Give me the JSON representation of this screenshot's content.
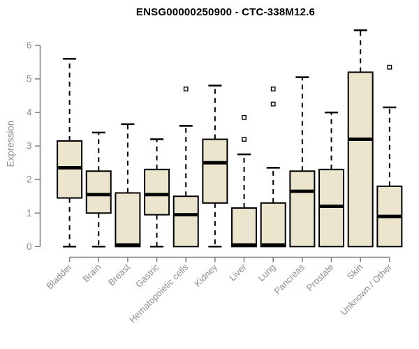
{
  "colors": {
    "background": "#ffffff",
    "box_fill": "#ECE5CD",
    "box_stroke": "#000000",
    "median": "#000000",
    "whisker": "#000000",
    "axis_line": "#7d7d7d",
    "axis_text": "#8e8e8e",
    "title_text": "#000000"
  },
  "chart_data": {
    "type": "boxplot",
    "title": "ENSG00000250900 - CTC-338M12.6",
    "xlabel": "",
    "ylabel": "Expression",
    "ylim": [
      0,
      6
    ],
    "yticks": [
      0,
      1,
      2,
      3,
      4,
      5,
      6
    ],
    "grid": false,
    "legend": "none",
    "categories": [
      "Bladder",
      "Brain",
      "Breast",
      "Gastric",
      "Hematopoietic cells",
      "Kidney",
      "Liver",
      "Lung",
      "Pancreas",
      "Prostate",
      "Skin",
      "Unknown / Other"
    ],
    "series": [
      {
        "category": "Bladder",
        "whisker_low": 0,
        "q1": 1.45,
        "median": 2.35,
        "q3": 3.15,
        "whisker_high": 5.6,
        "outliers": []
      },
      {
        "category": "Brain",
        "whisker_low": 0,
        "q1": 1.0,
        "median": 1.55,
        "q3": 2.25,
        "whisker_high": 3.4,
        "outliers": []
      },
      {
        "category": "Breast",
        "whisker_low": 0,
        "q1": 0,
        "median": 0.05,
        "q3": 1.6,
        "whisker_high": 3.65,
        "outliers": []
      },
      {
        "category": "Gastric",
        "whisker_low": 0,
        "q1": 0.95,
        "median": 1.55,
        "q3": 2.3,
        "whisker_high": 3.2,
        "outliers": []
      },
      {
        "category": "Hematopoietic cells",
        "whisker_low": 0,
        "q1": 0,
        "median": 0.95,
        "q3": 1.5,
        "whisker_high": 3.6,
        "outliers": [
          4.7
        ]
      },
      {
        "category": "Kidney",
        "whisker_low": 0,
        "q1": 1.3,
        "median": 2.5,
        "q3": 3.2,
        "whisker_high": 4.8,
        "outliers": []
      },
      {
        "category": "Liver",
        "whisker_low": 0,
        "q1": 0,
        "median": 0.05,
        "q3": 1.15,
        "whisker_high": 2.75,
        "outliers": [
          3.2,
          3.85
        ]
      },
      {
        "category": "Lung",
        "whisker_low": 0,
        "q1": 0,
        "median": 0.05,
        "q3": 1.3,
        "whisker_high": 2.35,
        "outliers": [
          4.25,
          4.7
        ]
      },
      {
        "category": "Pancreas",
        "whisker_low": 0,
        "q1": 0,
        "median": 1.65,
        "q3": 2.25,
        "whisker_high": 5.05,
        "outliers": []
      },
      {
        "category": "Prostate",
        "whisker_low": 0,
        "q1": 0,
        "median": 1.2,
        "q3": 2.3,
        "whisker_high": 4.0,
        "outliers": []
      },
      {
        "category": "Skin",
        "whisker_low": 0,
        "q1": 0,
        "median": 3.2,
        "q3": 5.2,
        "whisker_high": 6.45,
        "outliers": []
      },
      {
        "category": "Unknown / Other",
        "whisker_low": 0,
        "q1": 0,
        "median": 0.9,
        "q3": 1.8,
        "whisker_high": 4.15,
        "outliers": [
          5.35
        ]
      }
    ]
  }
}
